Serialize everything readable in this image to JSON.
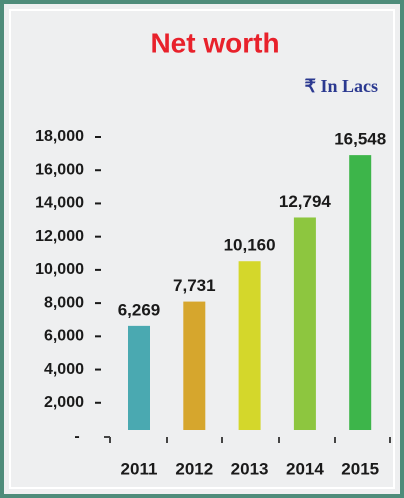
{
  "chart_data": {
    "type": "bar",
    "title": "Net worth",
    "subtitle": "₹ In Lacs",
    "categories": [
      "2011",
      "2012",
      "2013",
      "2014",
      "2015"
    ],
    "values": [
      6269,
      7731,
      10160,
      12794,
      16548
    ],
    "value_labels": [
      "6,269",
      "7,731",
      "10,160",
      "12,794",
      "16,548"
    ],
    "colors": [
      "#4aa9b1",
      "#d6a62d",
      "#d4d72b",
      "#8dc63f",
      "#3db54a"
    ],
    "ylim": [
      0,
      18000
    ],
    "yticks": [
      {
        "value": 2000,
        "label": "2,000"
      },
      {
        "value": 4000,
        "label": "4,000"
      },
      {
        "value": 6000,
        "label": "6,000"
      },
      {
        "value": 8000,
        "label": "8,000"
      },
      {
        "value": 10000,
        "label": "10,000"
      },
      {
        "value": 12000,
        "label": "12,000"
      },
      {
        "value": 14000,
        "label": "14,000"
      },
      {
        "value": 16000,
        "label": "16,000"
      },
      {
        "value": 18000,
        "label": "18,000"
      }
    ],
    "grid": false
  }
}
